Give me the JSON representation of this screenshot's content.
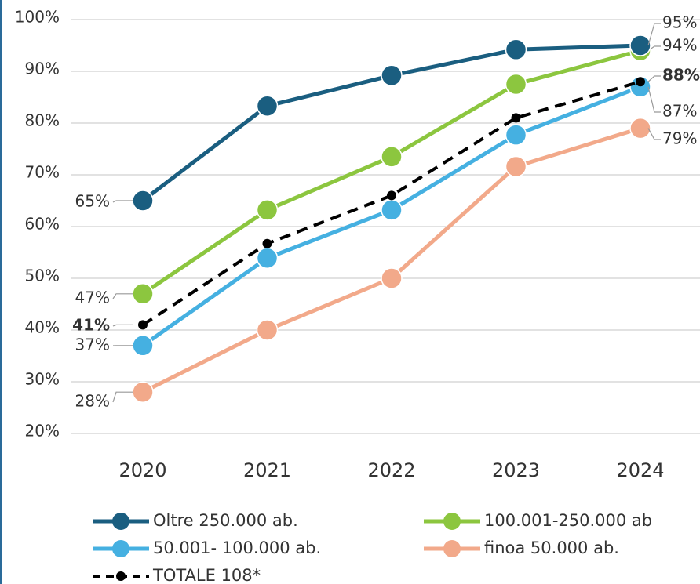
{
  "chart_data": {
    "type": "line",
    "categories": [
      "2020",
      "2021",
      "2022",
      "2023",
      "2024"
    ],
    "ylim": [
      20,
      100
    ],
    "yticks": [
      {
        "value": 20,
        "label": "20%"
      },
      {
        "value": 30,
        "label": "30%"
      },
      {
        "value": 40,
        "label": "40%"
      },
      {
        "value": 50,
        "label": "50%"
      },
      {
        "value": 60,
        "label": "60%"
      },
      {
        "value": 70,
        "label": "70%"
      },
      {
        "value": 80,
        "label": "80%"
      },
      {
        "value": 90,
        "label": "90%"
      },
      {
        "value": 100,
        "label": "100%"
      }
    ],
    "grid": true,
    "series": [
      {
        "name": "Oltre 250.000 ab.",
        "color": "#1a5e80",
        "values": [
          65,
          83.3,
          89.2,
          94.2,
          95
        ],
        "value_labels": [
          "65%",
          null,
          null,
          null,
          "95%"
        ]
      },
      {
        "name": "100.001-250.000 ab",
        "color": "#8cc63f",
        "values": [
          47,
          63.2,
          73.5,
          87.5,
          94
        ],
        "value_labels": [
          "47%",
          null,
          null,
          null,
          "94%"
        ]
      },
      {
        "name": "50.001- 100.000 ab.",
        "color": "#45b0e1",
        "values": [
          37,
          53.9,
          63.2,
          77.7,
          87
        ],
        "value_labels": [
          "37%",
          null,
          null,
          null,
          "87%"
        ]
      },
      {
        "name": "finoa 50.000 ab.",
        "color": "#f2a98a",
        "values": [
          28,
          40,
          50,
          71.6,
          79
        ],
        "value_labels": [
          "28%",
          null,
          null,
          null,
          "79%"
        ]
      },
      {
        "name": "TOTALE 108*",
        "color": "#000000",
        "values": [
          41,
          56.7,
          66,
          81,
          88
        ],
        "value_labels": [
          "41%",
          null,
          null,
          null,
          "88%"
        ]
      }
    ]
  }
}
